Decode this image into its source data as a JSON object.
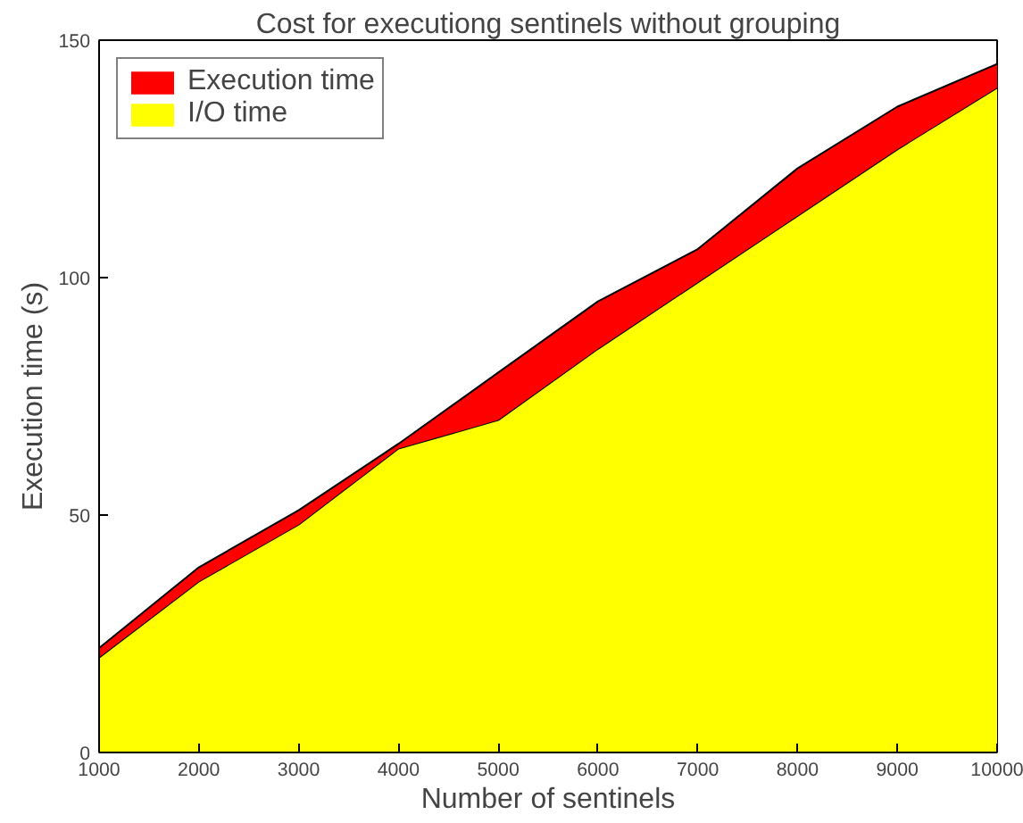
{
  "chart_data": {
    "type": "area",
    "title": "Cost for executiong sentinels without grouping",
    "xlabel": "Number of sentinels",
    "ylabel": "Execution time (s)",
    "x": [
      1000,
      2000,
      3000,
      4000,
      5000,
      6000,
      7000,
      8000,
      9000,
      10000
    ],
    "stacked": true,
    "series": [
      {
        "name": "I/O time",
        "color": "#ffff00",
        "values": [
          20,
          36,
          48,
          64,
          70,
          85,
          99,
          113,
          127,
          140
        ]
      },
      {
        "name": "Execution time",
        "color": "#ff0000",
        "values": [
          2,
          3,
          3,
          1,
          10,
          10,
          7,
          10,
          9,
          5
        ]
      }
    ],
    "xlim": [
      1000,
      10000
    ],
    "xticks": [
      1000,
      2000,
      3000,
      4000,
      5000,
      6000,
      7000,
      8000,
      9000,
      10000
    ],
    "ylim": [
      0,
      150
    ],
    "yticks": [
      0,
      50,
      100,
      150
    ],
    "grid": false,
    "legend": "top left"
  }
}
